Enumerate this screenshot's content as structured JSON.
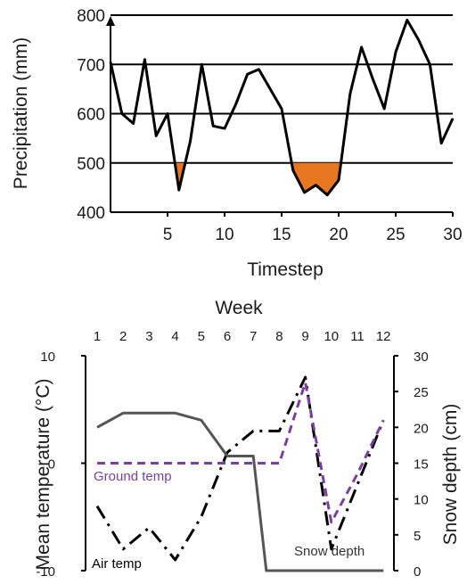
{
  "chart_data": [
    {
      "type": "line",
      "title": "",
      "xlabel": "Timestep",
      "ylabel": "Precipitation (mm)",
      "xlim": [
        0,
        30
      ],
      "ylim": [
        400,
        800
      ],
      "xticks": [
        "5",
        "10",
        "15",
        "20",
        "25",
        "30"
      ],
      "yticks": [
        "400",
        "500",
        "600",
        "700",
        "800"
      ],
      "grid": "horizontal",
      "threshold": 500,
      "highlight_color": "#e87722",
      "line_color": "#000000",
      "series": [
        {
          "x": [
            0,
            1,
            2,
            3,
            4,
            5,
            6,
            7,
            8,
            9,
            10,
            11,
            12,
            13,
            14,
            15,
            16,
            17,
            18,
            19,
            20,
            21,
            22,
            23,
            24,
            25,
            26,
            27,
            28,
            29,
            30
          ],
          "values": [
            705,
            600,
            580,
            710,
            555,
            600,
            445,
            545,
            700,
            575,
            570,
            620,
            680,
            690,
            650,
            610,
            485,
            440,
            455,
            435,
            465,
            640,
            735,
            670,
            610,
            725,
            790,
            750,
            700,
            540,
            590
          ]
        }
      ]
    },
    {
      "type": "line",
      "title": "",
      "xlabel_top": "Week",
      "ylabel": "Mean temperature (°C)",
      "ylabel_right": "Snow depth (cm)",
      "x": [
        1,
        2,
        3,
        4,
        5,
        6,
        7,
        8,
        9,
        10,
        11,
        12
      ],
      "xticks": [
        "1",
        "2",
        "3",
        "4",
        "5",
        "6",
        "7",
        "8",
        "9",
        "10",
        "11",
        "12"
      ],
      "ylim": [
        -10,
        10
      ],
      "yticks": [
        "-10",
        "0",
        "10"
      ],
      "ylim_right": [
        0,
        30
      ],
      "yticks_right": [
        "0",
        "5",
        "10",
        "15",
        "20",
        "25",
        "30"
      ],
      "series": [
        {
          "name": "Air temp",
          "axis": "left",
          "color": "#000000",
          "style": "dashdot",
          "values": [
            -4,
            -8,
            -6,
            -9,
            -5,
            1,
            3,
            3,
            8,
            -8,
            -2,
            4
          ]
        },
        {
          "name": "Ground temp",
          "axis": "left",
          "color": "#7b3fa0",
          "style": "dashed",
          "values": [
            0,
            0,
            0,
            0,
            0,
            0,
            0,
            0,
            7.5,
            -5.5,
            -1,
            4
          ]
        },
        {
          "name": "Snow depth",
          "axis": "right",
          "color": "#555555",
          "style": "solid",
          "x": [
            1,
            2,
            3,
            4,
            5,
            6,
            7,
            7.5,
            8,
            12
          ],
          "values": [
            20,
            22,
            22,
            22,
            21,
            16,
            16,
            0,
            0,
            0
          ]
        }
      ]
    }
  ]
}
